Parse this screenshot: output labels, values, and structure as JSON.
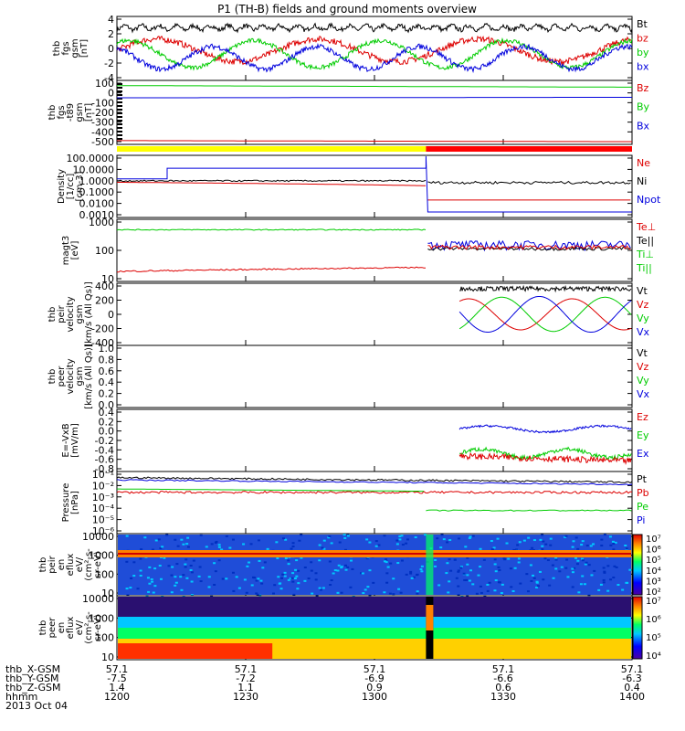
{
  "title": "P1 (TH-B) fields and ground moments overview",
  "footer": {
    "row_labels": [
      "thb_X-GSM",
      "thb_Y-GSM",
      "thb_Z-GSM",
      "hhmm",
      "2013 Oct 04"
    ],
    "columns": [
      {
        "x": "57.1",
        "y": "-7.5",
        "z": "1.4",
        "t": "1200"
      },
      {
        "x": "57.1",
        "y": "-7.2",
        "z": "1.1",
        "t": "1230"
      },
      {
        "x": "57.1",
        "y": "-6.9",
        "z": "0.9",
        "t": "1300"
      },
      {
        "x": "57.1",
        "y": "-6.6",
        "z": "0.6",
        "t": "1330"
      },
      {
        "x": "57.1",
        "y": "-6.3",
        "z": "0.4",
        "t": "1400"
      }
    ]
  },
  "chart_data": [
    {
      "type": "line",
      "id": "fgs",
      "ylabel": "thb\nfgs\ngsm\n[nT]",
      "yticks": [
        "4",
        "2",
        "0",
        "-2",
        "-4"
      ],
      "ylim": [
        -4,
        4.5
      ],
      "x_time": [
        "1200",
        "1400"
      ],
      "legend": [
        {
          "text": "Bt",
          "color": "#000000"
        },
        {
          "text": "bz",
          "color": "#dd0000"
        },
        {
          "text": "by",
          "color": "#00cc00"
        },
        {
          "text": "bx",
          "color": "#0000dd"
        }
      ]
    },
    {
      "type": "line",
      "id": "fgs-t89",
      "ylabel": "thb\nfgs\n-t89\ngsm\n[nT]",
      "yticks": [
        "100",
        "0",
        "-100",
        "-200",
        "-300",
        "-400",
        "-500"
      ],
      "ylim": [
        -580,
        100
      ],
      "legend": [
        {
          "text": "Bz",
          "color": "#dd0000"
        },
        {
          "text": "By",
          "color": "#00cc00"
        },
        {
          "text": "Bx",
          "color": "#0000dd"
        }
      ]
    },
    {
      "type": "bar",
      "id": "mode-bar",
      "segments": [
        {
          "from": 0,
          "to": 0.6,
          "color": "#ffff00"
        },
        {
          "from": 0.6,
          "to": 1,
          "color": "#ff0000"
        }
      ]
    },
    {
      "type": "line",
      "id": "density",
      "ylabel": "Density\n[1/cc]\n[cm-3]",
      "yticks": [
        "100.0000",
        "10.0000",
        "1.0000",
        "0.1000",
        "0.0100",
        "0.0010"
      ],
      "scale": "log",
      "legend": [
        {
          "text": "Ne",
          "color": "#dd0000"
        },
        {
          "text": "Ni",
          "color": "#000000"
        },
        {
          "text": "Npot",
          "color": "#0000dd"
        }
      ]
    },
    {
      "type": "line",
      "id": "temperature",
      "ylabel": "magt3\n[eV]",
      "yticks": [
        "1000",
        "100",
        "10"
      ],
      "scale": "log",
      "legend": [
        {
          "text": "Te⊥",
          "color": "#dd0000"
        },
        {
          "text": "Te||",
          "color": "#000000"
        },
        {
          "text": "Ti⊥",
          "color": "#00cc00"
        },
        {
          "text": "Ti||",
          "color": "#00cc00"
        }
      ]
    },
    {
      "type": "line",
      "id": "peir-velocity",
      "ylabel": "thb\npeir\nvelocity\ngsm\n[km/s (All Qs)]",
      "yticks": [
        "400",
        "200",
        "0",
        "-200",
        "-400"
      ],
      "ylim": [
        -400,
        400
      ],
      "legend": [
        {
          "text": "Vt",
          "color": "#000000"
        },
        {
          "text": "Vz",
          "color": "#dd0000"
        },
        {
          "text": "Vy",
          "color": "#00cc00"
        },
        {
          "text": "Vx",
          "color": "#0000dd"
        }
      ]
    },
    {
      "type": "line",
      "id": "peer-velocity",
      "ylabel": "thb\npeer\nvelocity\ngsm\n[km/s (All Qs)]",
      "yticks": [
        "1.0",
        "0.8",
        "0.6",
        "0.4",
        "0.2",
        "0.0"
      ],
      "ylim": [
        0,
        1
      ],
      "legend": [
        {
          "text": "Vt",
          "color": "#000000"
        },
        {
          "text": "Vz",
          "color": "#dd0000"
        },
        {
          "text": "Vy",
          "color": "#00cc00"
        },
        {
          "text": "Vx",
          "color": "#0000dd"
        }
      ]
    },
    {
      "type": "line",
      "id": "efield",
      "ylabel": "E=-VxB\n[mV/m]",
      "yticks": [
        "0.4",
        "0.2",
        "0.0",
        "-0.2",
        "-0.4",
        "-0.6",
        "-0.8"
      ],
      "ylim": [
        -0.8,
        0.4
      ],
      "legend": [
        {
          "text": "Ez",
          "color": "#dd0000"
        },
        {
          "text": "Ey",
          "color": "#00cc00"
        },
        {
          "text": "Ex",
          "color": "#0000dd"
        }
      ]
    },
    {
      "type": "line",
      "id": "pressure",
      "ylabel": "Pressure\n[nPa]",
      "yticks": [
        "10⁻¹",
        "10⁻²",
        "10⁻³",
        "10⁻⁴",
        "10⁻⁵",
        "10⁻⁶"
      ],
      "scale": "log",
      "legend": [
        {
          "text": "Pt",
          "color": "#000000"
        },
        {
          "text": "Pb",
          "color": "#dd0000"
        },
        {
          "text": "Pe",
          "color": "#00cc00"
        },
        {
          "text": "Pi",
          "color": "#0000dd"
        }
      ]
    },
    {
      "type": "heatmap",
      "id": "peir-spec",
      "ylabel": "thb\npeir\nen\neflux\neV/\n(cm²-s-\nsr-eV)",
      "yticks": [
        "10000",
        "1000",
        "100",
        "10"
      ],
      "scale": "log",
      "colorbar_ticks": [
        "10⁷",
        "10⁶",
        "10⁵",
        "10⁴",
        "10³",
        "10²"
      ]
    },
    {
      "type": "heatmap",
      "id": "peer-spec",
      "ylabel": "thb\npeer\nen\neflux\neV/\n(cm²-s-\nsr-eV)",
      "yticks": [
        "10000",
        "1000",
        "100",
        "10"
      ],
      "scale": "log",
      "colorbar_ticks": [
        "10⁷",
        "10⁶",
        "10⁵",
        "10⁴"
      ]
    }
  ],
  "colors": {
    "black": "#000000",
    "red": "#dd0000",
    "green": "#00cc00",
    "blue": "#0000dd"
  }
}
